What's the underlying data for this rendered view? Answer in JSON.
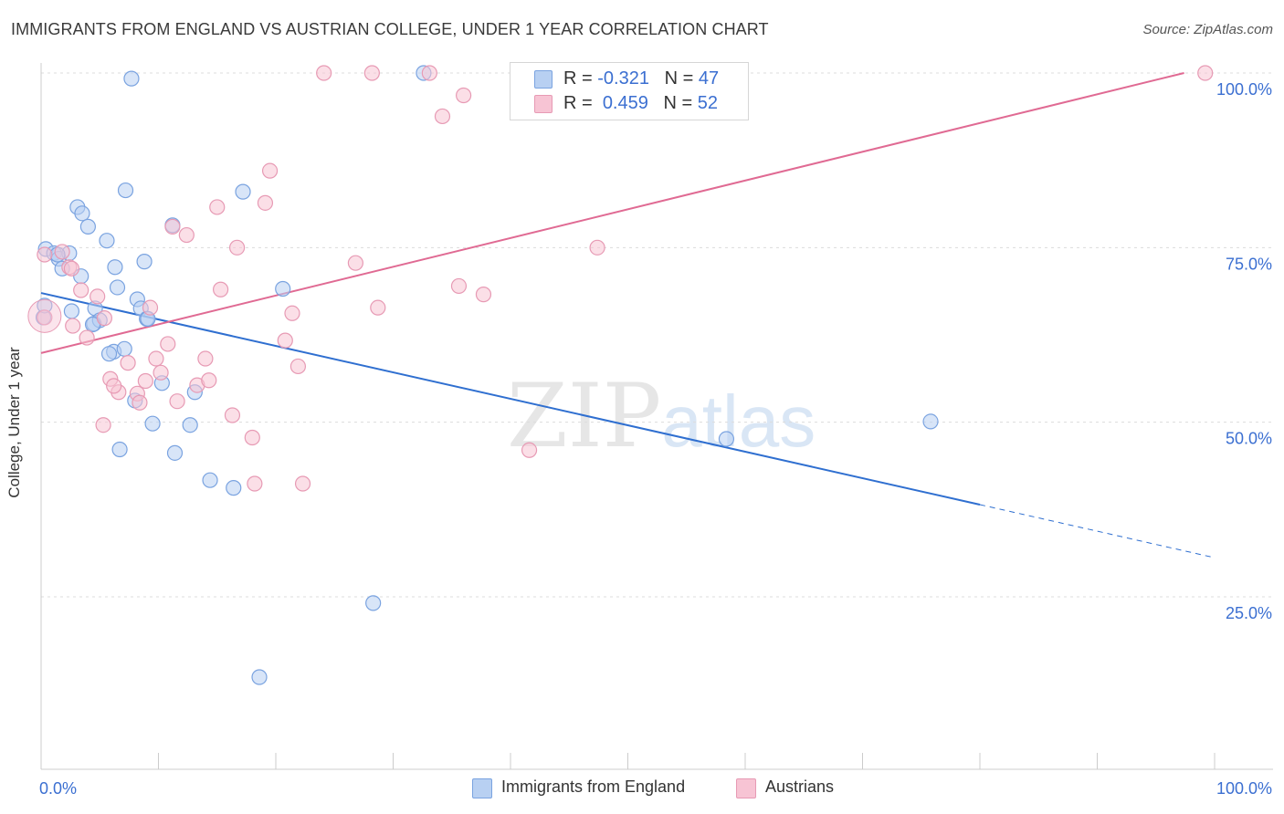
{
  "title": "IMMIGRANTS FROM ENGLAND VS AUSTRIAN COLLEGE, UNDER 1 YEAR CORRELATION CHART",
  "source": "Source: ZipAtlas.com",
  "watermark": {
    "zip": "ZIP",
    "atlas": "atlas"
  },
  "legend_top": {
    "row1": {
      "r_label": "R = ",
      "r_value": "-0.321",
      "n_label": "N = ",
      "n_value": "47"
    },
    "row2": {
      "r_label": "R = ",
      "r_value": "0.459",
      "n_label": "N = ",
      "n_value": "52"
    }
  },
  "colors": {
    "blue_fill": "#b8d0f2",
    "blue_stroke": "#7aa3e0",
    "blue_line": "#2f6fd0",
    "pink_fill": "#f7c4d4",
    "pink_stroke": "#e79ab4",
    "pink_line": "#e06a93",
    "grid": "#dcdcdc",
    "axis": "#cccccc",
    "tick_label": "#3b6fd1"
  },
  "chart_data": {
    "type": "scatter",
    "title": "IMMIGRANTS FROM ENGLAND VS AUSTRIAN COLLEGE, UNDER 1 YEAR CORRELATION CHART",
    "xlabel": "",
    "ylabel": "College, Under 1 year",
    "xlim": [
      0,
      100
    ],
    "ylim": [
      0,
      102
    ],
    "x_tick_labels": [
      "0.0%",
      "100.0%"
    ],
    "y_ticks": [
      25,
      50,
      75,
      100
    ],
    "y_tick_labels": [
      "25.0%",
      "50.0%",
      "75.0%",
      "100.0%"
    ],
    "grid": true,
    "legend_position": "top-center",
    "series": [
      {
        "name": "Immigrants from England",
        "color": "#7aa3e0",
        "r": -0.321,
        "n": 47,
        "trend": {
          "x0": 0,
          "y0": 68.5,
          "x1": 80,
          "y1": 38.2,
          "dash_to_x": 100,
          "dash_to_y": 30.6
        },
        "points": [
          [
            7.7,
            99.2
          ],
          [
            32.6,
            100
          ],
          [
            0.2,
            65
          ],
          [
            0.4,
            74.8
          ],
          [
            1.1,
            74.2
          ],
          [
            1.5,
            73.4
          ],
          [
            2.4,
            74.2
          ],
          [
            1.8,
            72
          ],
          [
            2.6,
            65.9
          ],
          [
            3.1,
            80.8
          ],
          [
            3.5,
            79.9
          ],
          [
            4.0,
            78
          ],
          [
            4.5,
            64.1
          ],
          [
            3.4,
            70.9
          ],
          [
            4.6,
            66.3
          ],
          [
            5.0,
            64.6
          ],
          [
            5.6,
            76
          ],
          [
            6.5,
            69.3
          ],
          [
            6.2,
            60.1
          ],
          [
            7.1,
            60.5
          ],
          [
            8.2,
            67.6
          ],
          [
            8.5,
            66.3
          ],
          [
            9.0,
            64.8
          ],
          [
            8.8,
            73
          ],
          [
            7.2,
            83.2
          ],
          [
            6.3,
            72.2
          ],
          [
            8.0,
            53.1
          ],
          [
            9.5,
            49.8
          ],
          [
            10.3,
            55.6
          ],
          [
            11.4,
            45.6
          ],
          [
            12.7,
            49.6
          ],
          [
            13.1,
            54.3
          ],
          [
            14.4,
            41.7
          ],
          [
            16.4,
            40.6
          ],
          [
            17.2,
            83
          ],
          [
            20.6,
            69.1
          ],
          [
            11.2,
            78.2
          ],
          [
            5.8,
            59.8
          ],
          [
            4.4,
            64.0
          ],
          [
            6.7,
            46.1
          ],
          [
            0.3,
            66.7
          ],
          [
            28.3,
            24.1
          ],
          [
            18.6,
            13.5
          ],
          [
            75.8,
            50.1
          ],
          [
            58.4,
            47.6
          ],
          [
            1.4,
            74.0
          ],
          [
            9.1,
            64.8
          ]
        ]
      },
      {
        "name": "Austrians",
        "color": "#e79ab4",
        "r": 0.459,
        "n": 52,
        "trend": {
          "x0": 0,
          "y0": 59.9,
          "x1": 97.4,
          "y1": 100
        },
        "points": [
          [
            24.1,
            100
          ],
          [
            28.2,
            100
          ],
          [
            33.1,
            100
          ],
          [
            99.2,
            100
          ],
          [
            34.2,
            93.8
          ],
          [
            36.0,
            96.8
          ],
          [
            19.5,
            86
          ],
          [
            15.0,
            80.8
          ],
          [
            19.1,
            81.4
          ],
          [
            11.2,
            78
          ],
          [
            12.4,
            76.8
          ],
          [
            16.7,
            75
          ],
          [
            47.4,
            75
          ],
          [
            26.8,
            72.8
          ],
          [
            0.3,
            74.0
          ],
          [
            2.4,
            72.2
          ],
          [
            1.8,
            74.4
          ],
          [
            3.4,
            68.9
          ],
          [
            15.3,
            69.0
          ],
          [
            35.6,
            69.5
          ],
          [
            37.7,
            68.3
          ],
          [
            28.7,
            66.4
          ],
          [
            21.4,
            65.6
          ],
          [
            9.3,
            66.4
          ],
          [
            4.8,
            68.0
          ],
          [
            2.7,
            63.8
          ],
          [
            5.4,
            64.9
          ],
          [
            3.9,
            62.1
          ],
          [
            10.8,
            61.2
          ],
          [
            20.8,
            61.7
          ],
          [
            7.4,
            58.5
          ],
          [
            9.8,
            59.1
          ],
          [
            14.0,
            59.1
          ],
          [
            21.9,
            58.0
          ],
          [
            10.2,
            57.1
          ],
          [
            5.9,
            56.2
          ],
          [
            11.6,
            53.0
          ],
          [
            13.3,
            55.3
          ],
          [
            14.3,
            56.0
          ],
          [
            6.6,
            54.3
          ],
          [
            8.2,
            54.1
          ],
          [
            8.4,
            52.8
          ],
          [
            8.9,
            55.9
          ],
          [
            5.3,
            49.6
          ],
          [
            16.3,
            51.0
          ],
          [
            18.0,
            47.8
          ],
          [
            18.2,
            41.2
          ],
          [
            22.3,
            41.2
          ],
          [
            41.6,
            46.0
          ],
          [
            0.3,
            65.0
          ],
          [
            6.2,
            55.2
          ],
          [
            2.6,
            72.0
          ]
        ]
      }
    ]
  },
  "legend_bottom": {
    "item1": "Immigrants from England",
    "item2": "Austrians"
  }
}
